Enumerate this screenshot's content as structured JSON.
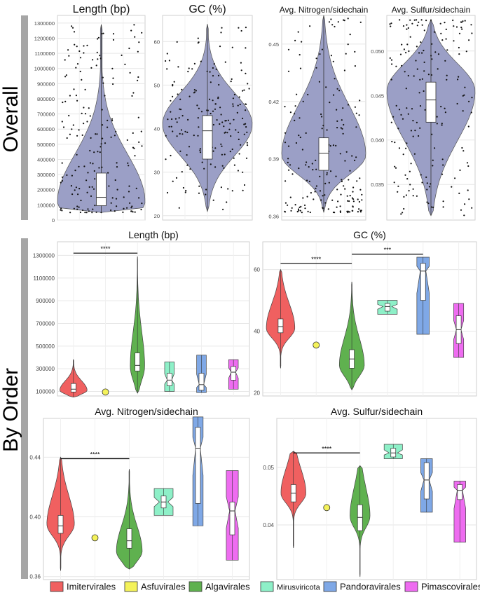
{
  "section_labels": {
    "overall": "Overall",
    "by_order": "By Order"
  },
  "colors": {
    "violin_overall": "#9b9fc6",
    "Imitervirales": "#f06060",
    "Asfuvirales": "#f4f25a",
    "Algavirales": "#5fb14f",
    "Mirusviricota": "#8ef0c8",
    "Pandoravirales": "#7fa8e6",
    "Pimascovirales": "#ee6cf0",
    "grid": "#e6e6e6",
    "section_bar": "#a6a6a6"
  },
  "legend": [
    {
      "name": "Imitervirales",
      "color": "#f06060"
    },
    {
      "name": "Asfuvirales",
      "color": "#f4f25a"
    },
    {
      "name": "Algavirales",
      "color": "#5fb14f"
    },
    {
      "name": "Mirusviricota",
      "color": "#8ef0c8"
    },
    {
      "name": "Pandoravirales",
      "color": "#7fa8e6"
    },
    {
      "name": "Pimascovirales",
      "color": "#ee6cf0"
    }
  ],
  "chart_data": [
    {
      "id": "overall_length",
      "type": "violin",
      "section": "overall",
      "title": "Length (bp)",
      "ylim": [
        0,
        1350000
      ],
      "yticks": [
        0,
        100000,
        200000,
        300000,
        400000,
        500000,
        600000,
        700000,
        800000,
        900000,
        1000000,
        1100000,
        1200000,
        1300000
      ],
      "yticklabels": [
        "0",
        "100000",
        "200000",
        "300000",
        "400000",
        "500000",
        "600000",
        "700000",
        "800000",
        "900000",
        "1000000",
        "1100000",
        "1200000",
        "1300000"
      ],
      "violin": {
        "min": 50000,
        "max": 1290000,
        "peak": 120000,
        "spread": 0.45,
        "skew": "right"
      },
      "box": {
        "q1": 95000,
        "median": 150000,
        "q3": 310000,
        "whisker_low": 50000,
        "whisker_high": 1290000
      }
    },
    {
      "id": "overall_gc",
      "type": "violin",
      "section": "overall",
      "title": "GC (%)",
      "ylim": [
        19,
        66
      ],
      "yticks": [
        20,
        30,
        40,
        50,
        60
      ],
      "yticklabels": [
        "20",
        "30",
        "40",
        "50",
        "60"
      ],
      "violin": {
        "min": 21,
        "max": 64,
        "peak": 41,
        "spread": 0.25,
        "skew": "none"
      },
      "box": {
        "q1": 33,
        "median": 39.5,
        "q3": 43,
        "whisker_low": 21,
        "whisker_high": 64
      }
    },
    {
      "id": "overall_nitrogen",
      "type": "violin",
      "section": "overall",
      "title": "Avg. Nitrogen/sidechain",
      "ylim": [
        0.358,
        0.465
      ],
      "yticks": [
        0.36,
        0.39,
        0.42,
        0.45
      ],
      "yticklabels": [
        "0.36",
        "0.39",
        "0.42",
        "0.45"
      ],
      "violin": {
        "min": 0.362,
        "max": 0.465,
        "peak": 0.392,
        "spread": 0.2,
        "skew": "right"
      },
      "box": {
        "q1": 0.384,
        "median": 0.393,
        "q3": 0.401,
        "whisker_low": 0.362,
        "whisker_high": 0.465
      }
    },
    {
      "id": "overall_sulfur",
      "type": "violin",
      "section": "overall",
      "title": "Avg. Sulfur/sidechain",
      "ylim": [
        0.031,
        0.054
      ],
      "yticks": [
        0.035,
        0.04,
        0.045,
        0.05
      ],
      "yticklabels": [
        "0.035",
        "0.040",
        "0.045",
        "0.050"
      ],
      "violin": {
        "min": 0.0315,
        "max": 0.0535,
        "peak": 0.0455,
        "spread": 0.3,
        "skew": "left"
      },
      "box": {
        "q1": 0.042,
        "median": 0.0445,
        "q3": 0.0465,
        "whisker_low": 0.0315,
        "whisker_high": 0.0535
      }
    },
    {
      "id": "order_length",
      "type": "violin",
      "section": "by_order",
      "title": "Length (bp)",
      "ylim": [
        60000,
        1420000
      ],
      "yticks": [
        100000,
        300000,
        500000,
        700000,
        900000,
        1100000,
        1300000
      ],
      "yticklabels": [
        "100000",
        "300000",
        "500000",
        "700000",
        "900000",
        "1100000",
        "1300000"
      ],
      "categories": [
        "Imitervirales",
        "Asfuvirales",
        "Algavirales",
        "Mirusviricota",
        "Pandoravirales",
        "Pimascovirales"
      ],
      "series": [
        {
          "name": "Imitervirales",
          "kind": "violin",
          "min": 50000,
          "max": 380000,
          "peak": 110000,
          "width": 0.85,
          "median": 120000,
          "q1": 95000,
          "q3": 170000
        },
        {
          "name": "Asfuvirales",
          "kind": "point",
          "value": 95000
        },
        {
          "name": "Algavirales",
          "kind": "violin",
          "min": 85000,
          "max": 1290000,
          "peak": 320000,
          "width": 0.45,
          "median": 330000,
          "q1": 280000,
          "q3": 440000
        },
        {
          "name": "Mirusviricota",
          "kind": "notch",
          "min": 100000,
          "max": 360000,
          "peak": 200000,
          "width": 0.3,
          "median": 200000,
          "q1": 150000,
          "q3": 260000
        },
        {
          "name": "Pandoravirales",
          "kind": "notch",
          "min": 90000,
          "max": 420000,
          "peak": 160000,
          "width": 0.3,
          "median": 160000,
          "q1": 110000,
          "q3": 260000
        },
        {
          "name": "Pimascovirales",
          "kind": "notch",
          "min": 120000,
          "max": 380000,
          "peak": 270000,
          "width": 0.3,
          "median": 270000,
          "q1": 200000,
          "q3": 320000
        }
      ],
      "significance": [
        {
          "from": "Imitervirales",
          "to": "Algavirales",
          "y": 1320000,
          "label": "****"
        }
      ]
    },
    {
      "id": "order_gc",
      "type": "violin",
      "section": "by_order",
      "title": "GC (%)",
      "ylim": [
        19,
        69
      ],
      "yticks": [
        20,
        40,
        60
      ],
      "yticklabels": [
        "20",
        "40",
        "60"
      ],
      "categories": [
        "Imitervirales",
        "Asfuvirales",
        "Algavirales",
        "Mirusviricota",
        "Pandoravirales",
        "Pimascovirales"
      ],
      "series": [
        {
          "name": "Imitervirales",
          "kind": "violin",
          "min": 28,
          "max": 60,
          "peak": 41,
          "width": 0.8,
          "median": 41.5,
          "q1": 39.5,
          "q3": 44
        },
        {
          "name": "Asfuvirales",
          "kind": "point",
          "value": 35.5
        },
        {
          "name": "Algavirales",
          "kind": "violin",
          "min": 21,
          "max": 56,
          "peak": 29,
          "width": 0.7,
          "median": 31,
          "q1": 28,
          "q3": 34
        },
        {
          "name": "Mirusviricota",
          "kind": "notch",
          "min": 45.5,
          "max": 50,
          "peak": 48,
          "width": 0.55,
          "median": 48,
          "q1": 46.5,
          "q3": 49
        },
        {
          "name": "Pandoravirales",
          "kind": "notch",
          "min": 39,
          "max": 64,
          "peak": 60,
          "width": 0.35,
          "median": 59.5,
          "q1": 50,
          "q3": 62
        },
        {
          "name": "Pimascovirales",
          "kind": "notch",
          "min": 31.5,
          "max": 49,
          "peak": 40,
          "width": 0.28,
          "median": 40.5,
          "q1": 36,
          "q3": 45
        }
      ],
      "significance": [
        {
          "from": "Imitervirales",
          "to": "Algavirales",
          "y": 62,
          "label": "****"
        },
        {
          "from": "Algavirales",
          "to": "Pandoravirales",
          "y": 65,
          "label": "***"
        }
      ]
    },
    {
      "id": "order_nitrogen",
      "type": "violin",
      "section": "by_order",
      "title": "Avg. Nitrogen/sidechain",
      "ylim": [
        0.358,
        0.466
      ],
      "yticks": [
        0.36,
        0.4,
        0.44
      ],
      "yticklabels": [
        "0.36",
        "0.40",
        "0.44"
      ],
      "categories": [
        "Imitervirales",
        "Asfuvirales",
        "Algavirales",
        "Mirusviricota",
        "Pandoravirales",
        "Pimascovirales"
      ],
      "series": [
        {
          "name": "Imitervirales",
          "kind": "violin",
          "min": 0.364,
          "max": 0.44,
          "peak": 0.395,
          "width": 0.8,
          "median": 0.394,
          "q1": 0.389,
          "q3": 0.401
        },
        {
          "name": "Asfuvirales",
          "kind": "point",
          "value": 0.386
        },
        {
          "name": "Algavirales",
          "kind": "violin",
          "min": 0.365,
          "max": 0.432,
          "peak": 0.377,
          "width": 0.75,
          "median": 0.384,
          "q1": 0.379,
          "q3": 0.392
        },
        {
          "name": "Mirusviricota",
          "kind": "notch",
          "min": 0.401,
          "max": 0.419,
          "peak": 0.41,
          "width": 0.55,
          "median": 0.41,
          "q1": 0.406,
          "q3": 0.414
        },
        {
          "name": "Pandoravirales",
          "kind": "notch",
          "min": 0.394,
          "max": 0.467,
          "peak": 0.445,
          "width": 0.3,
          "median": 0.446,
          "q1": 0.409,
          "q3": 0.46
        },
        {
          "name": "Pimascovirales",
          "kind": "notch",
          "min": 0.371,
          "max": 0.431,
          "peak": 0.404,
          "width": 0.35,
          "median": 0.404,
          "q1": 0.388,
          "q3": 0.41
        }
      ],
      "significance": [
        {
          "from": "Imitervirales",
          "to": "Algavirales",
          "y": 0.439,
          "label": "****"
        }
      ]
    },
    {
      "id": "order_sulfur",
      "type": "violin",
      "section": "by_order",
      "title": "Avg. Sulfur/sidechain",
      "ylim": [
        0.0305,
        0.0585
      ],
      "yticks": [
        0.04,
        0.05
      ],
      "yticklabels": [
        "0.04",
        "0.05"
      ],
      "categories": [
        "Imitervirales",
        "Asfuvirales",
        "Algavirales",
        "Mirusviricota",
        "Pandoravirales",
        "Pimascovirales"
      ],
      "series": [
        {
          "name": "Imitervirales",
          "kind": "violin",
          "min": 0.036,
          "max": 0.0528,
          "peak": 0.0455,
          "width": 0.75,
          "median": 0.0455,
          "q1": 0.044,
          "q3": 0.047
        },
        {
          "name": "Asfuvirales",
          "kind": "point",
          "value": 0.043
        },
        {
          "name": "Algavirales",
          "kind": "violin",
          "min": 0.031,
          "max": 0.0503,
          "peak": 0.0415,
          "width": 0.6,
          "median": 0.0413,
          "q1": 0.039,
          "q3": 0.0435
        },
        {
          "name": "Mirusviricota",
          "kind": "notch",
          "min": 0.0515,
          "max": 0.054,
          "peak": 0.0527,
          "width": 0.55,
          "median": 0.0525,
          "q1": 0.0518,
          "q3": 0.0533
        },
        {
          "name": "Pandoravirales",
          "kind": "notch",
          "min": 0.0422,
          "max": 0.0515,
          "peak": 0.0478,
          "width": 0.35,
          "median": 0.0478,
          "q1": 0.0445,
          "q3": 0.0508
        },
        {
          "name": "Pimascovirales",
          "kind": "notch",
          "min": 0.037,
          "max": 0.0476,
          "peak": 0.046,
          "width": 0.35,
          "median": 0.046,
          "q1": 0.0444,
          "q3": 0.047
        }
      ],
      "significance": [
        {
          "from": "Imitervirales",
          "to": "Algavirales",
          "y": 0.0525,
          "label": "****"
        }
      ]
    }
  ]
}
